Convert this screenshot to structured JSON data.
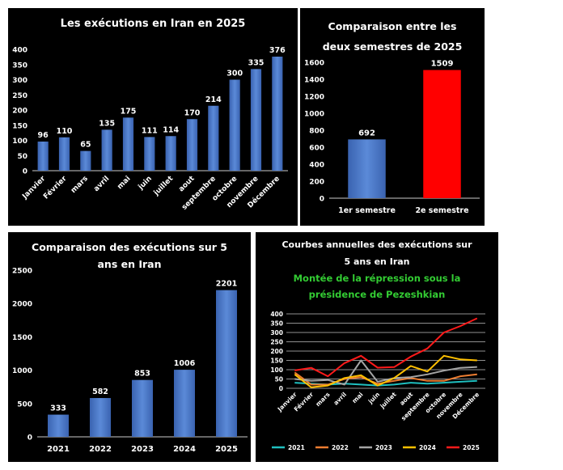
{
  "colors": {
    "background": "#000000",
    "blue_bar": "#4a78c8",
    "red_bar": "#ff0000",
    "text": "#ffffff",
    "subtitle_green": "#33cc33",
    "series": [
      "#1fbfbf",
      "#ed7d31",
      "#a5a5a5",
      "#ffc000",
      "#ff1a1a"
    ]
  },
  "chart_data": [
    {
      "id": "monthly-2025",
      "type": "bar",
      "title": "Les exécutions en Iran en 2025",
      "categories": [
        "Janvier",
        "Février",
        "mars",
        "avril",
        "mai",
        "juin",
        "juillet",
        "aout",
        "septembre",
        "octobre",
        "novembre",
        "Décembre"
      ],
      "values": [
        96,
        110,
        65,
        135,
        175,
        111,
        114,
        170,
        214,
        300,
        335,
        376
      ],
      "ylim": [
        0,
        400
      ],
      "yticks": [
        0,
        50,
        100,
        150,
        200,
        250,
        300,
        350,
        400
      ],
      "data_labels": true,
      "grid": false
    },
    {
      "id": "semesters",
      "type": "bar",
      "title": [
        "Comparaison entre les",
        "deux semestres de 2025"
      ],
      "categories": [
        "1er semestre",
        "2e semestre"
      ],
      "values": [
        692,
        1509
      ],
      "bar_colors": [
        "#4a78c8",
        "#ff0000"
      ],
      "ylim": [
        0,
        1600
      ],
      "yticks": [
        0,
        200,
        400,
        600,
        800,
        1000,
        1200,
        1400,
        1600
      ],
      "data_labels": true,
      "grid": false
    },
    {
      "id": "five-years",
      "type": "bar",
      "title": [
        "Comparaison des exécutions sur 5",
        "ans en Iran"
      ],
      "categories": [
        "2021",
        "2022",
        "2023",
        "2024",
        "2025"
      ],
      "values": [
        333,
        582,
        853,
        1006,
        2201
      ],
      "ylim": [
        0,
        2500
      ],
      "yticks": [
        0,
        500,
        1000,
        1500,
        2000,
        2500
      ],
      "data_labels": true,
      "grid": false
    },
    {
      "id": "annual-curves",
      "type": "line",
      "title": [
        "Courbes annuelles des exécutions sur",
        "5 ans en Iran"
      ],
      "subtitle": [
        "Montée de la répression sous la",
        "présidence de Pezeshkian"
      ],
      "categories": [
        "Janvier",
        "Février",
        "mars",
        "avril",
        "mai",
        "juin",
        "juillet",
        "aout",
        "septembre",
        "octobre",
        "novembre",
        "Décembre"
      ],
      "series": [
        {
          "name": "2021",
          "values": [
            30,
            25,
            20,
            25,
            20,
            15,
            20,
            30,
            25,
            30,
            35,
            40
          ]
        },
        {
          "name": "2022",
          "values": [
            85,
            20,
            20,
            50,
            60,
            25,
            40,
            55,
            40,
            40,
            65,
            75
          ]
        },
        {
          "name": "2023",
          "values": [
            50,
            40,
            45,
            20,
            150,
            35,
            55,
            60,
            75,
            95,
            110,
            115
          ]
        },
        {
          "name": "2024",
          "values": [
            75,
            5,
            15,
            55,
            70,
            15,
            55,
            120,
            90,
            175,
            155,
            150
          ]
        },
        {
          "name": "2025",
          "values": [
            96,
            110,
            65,
            135,
            175,
            111,
            114,
            170,
            214,
            300,
            335,
            376
          ]
        }
      ],
      "ylim": [
        0,
        400
      ],
      "yticks": [
        0,
        50,
        100,
        150,
        200,
        250,
        300,
        350,
        400
      ],
      "grid": true,
      "legend_position": "bottom"
    }
  ]
}
